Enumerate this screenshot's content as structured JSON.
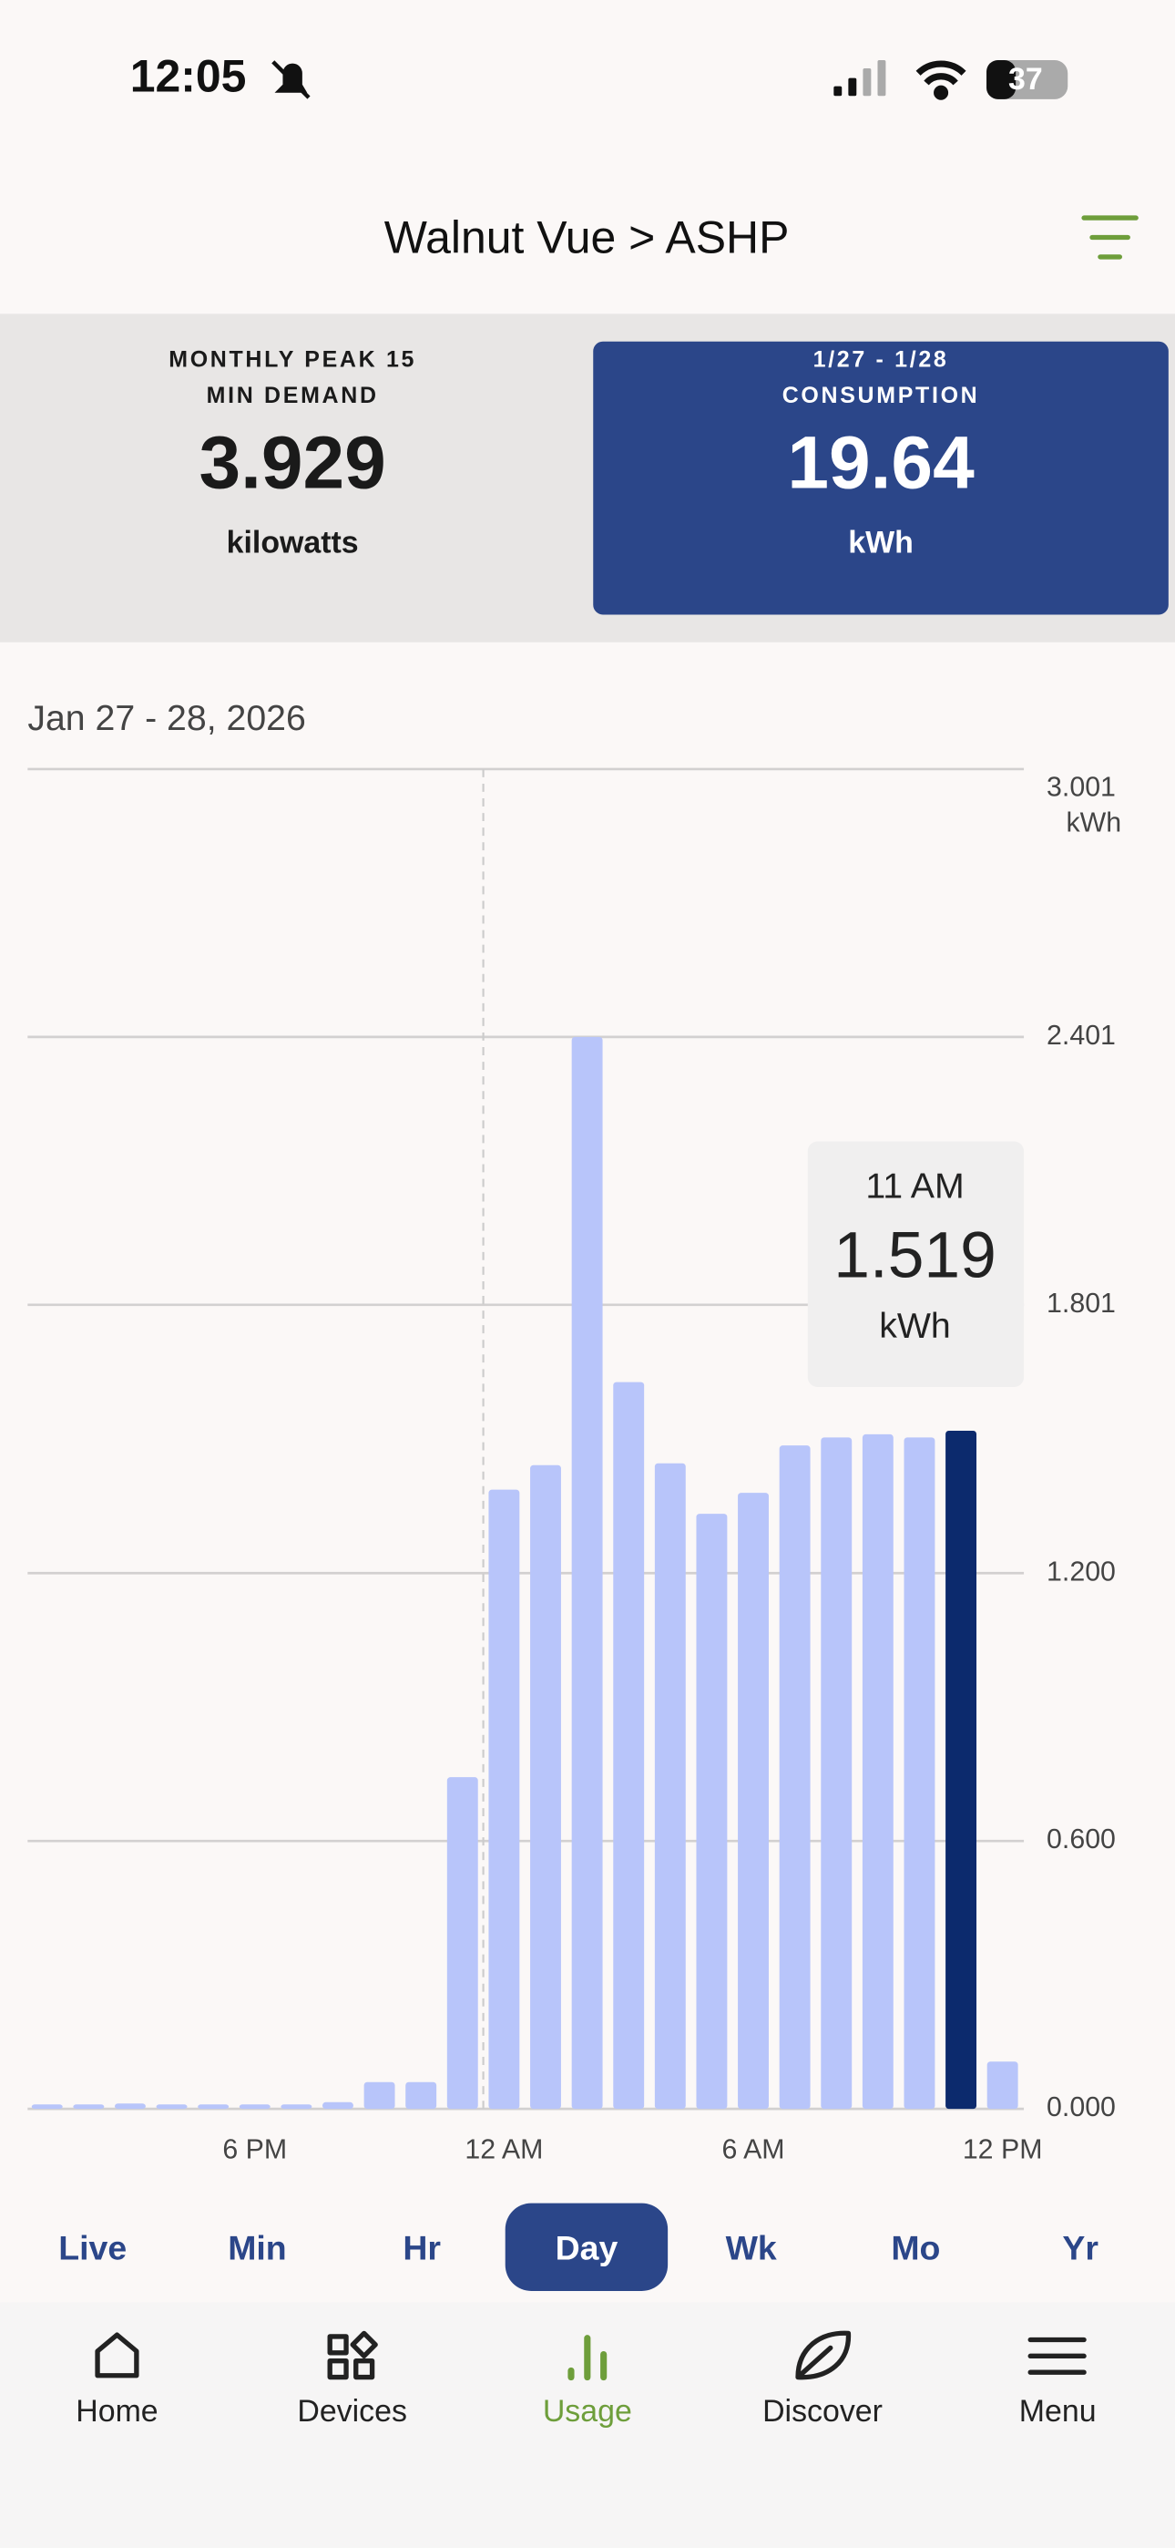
{
  "status_bar": {
    "time": "12:05",
    "battery": "37"
  },
  "header": {
    "title": "Walnut Vue > ASHP"
  },
  "cards": [
    {
      "title_lines": [
        "MONTHLY PEAK 15",
        "MIN DEMAND"
      ],
      "value": "3.929",
      "unit": "kilowatts"
    },
    {
      "title_lines": [
        "1/27 - 1/28",
        "CONSUMPTION"
      ],
      "value": "19.64",
      "unit": "kWh"
    }
  ],
  "date_range": "Jan 27 - 28, 2026",
  "chart_data": {
    "type": "bar",
    "categories": [
      null,
      null,
      null,
      null,
      null,
      "6 PM",
      null,
      null,
      null,
      null,
      null,
      "12 AM",
      null,
      null,
      null,
      null,
      null,
      "6 AM",
      null,
      null,
      null,
      null,
      null,
      "12 PM"
    ],
    "values": [
      0.01,
      0.01,
      0.012,
      0.01,
      0.01,
      0.01,
      0.01,
      0.015,
      0.06,
      0.06,
      0.743,
      1.387,
      1.442,
      2.401,
      1.628,
      1.446,
      1.333,
      1.38,
      1.486,
      1.504,
      1.511,
      1.504,
      1.519,
      0.106
    ],
    "color": "#b8c5fa",
    "highlight_color": "#0c2a6d",
    "ylim": [
      0,
      3.001
    ],
    "yticks": [
      {
        "value": 0,
        "label": "0.000"
      },
      {
        "value": 0.6,
        "label": "0.600"
      },
      {
        "value": 1.2,
        "label": "1.200"
      },
      1.801,
      2.401,
      3.001
    ],
    "y_unit": "kWh",
    "grid": true,
    "tooltip": {
      "label": "11 AM",
      "value": 1.519,
      "unit": "kWh"
    }
  },
  "periods": [
    "Live",
    "Min",
    "Hr",
    "Day",
    "Wk",
    "Mo",
    "Yr"
  ],
  "selected_period": "Day",
  "nav": [
    "Home",
    "Devices",
    "Usage",
    "Discover",
    "Menu"
  ],
  "active_tab": "Usage"
}
